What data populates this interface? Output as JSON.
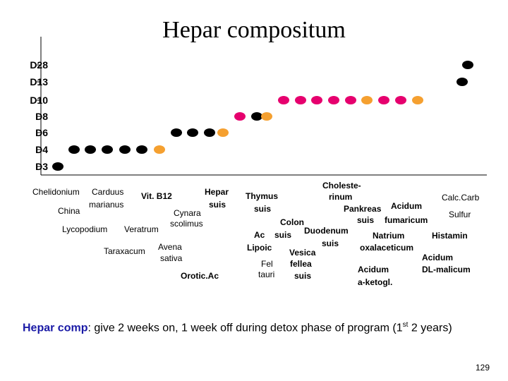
{
  "title": "Hepar compositum",
  "colors": {
    "black": "#000000",
    "pink": "#e6006e",
    "orange": "#f5a030",
    "blue": "#1a1aa6"
  },
  "y_levels": [
    "D28",
    "D13",
    "D10",
    "D8",
    "D6",
    "D4",
    "D3"
  ],
  "chart_data": {
    "type": "scatter",
    "title": "Hepar compositum",
    "xlabel": "",
    "ylabel": "",
    "y_categories": [
      "D28",
      "D13",
      "D10",
      "D8",
      "D6",
      "D4",
      "D3"
    ],
    "points": [
      {
        "x": 1,
        "y": "D3",
        "color": "black"
      },
      {
        "x": 2,
        "y": "D4",
        "color": "black"
      },
      {
        "x": 3,
        "y": "D4",
        "color": "black"
      },
      {
        "x": 4,
        "y": "D4",
        "color": "black"
      },
      {
        "x": 5,
        "y": "D4",
        "color": "black"
      },
      {
        "x": 6,
        "y": "D4",
        "color": "black"
      },
      {
        "x": 7,
        "y": "D4",
        "color": "orange"
      },
      {
        "x": 8,
        "y": "D6",
        "color": "black"
      },
      {
        "x": 9,
        "y": "D6",
        "color": "black"
      },
      {
        "x": 10,
        "y": "D6",
        "color": "black"
      },
      {
        "x": 11,
        "y": "D6",
        "color": "orange"
      },
      {
        "x": 12,
        "y": "D8",
        "color": "pink"
      },
      {
        "x": 13,
        "y": "D8",
        "color": "black"
      },
      {
        "x": 14,
        "y": "D8",
        "color": "orange"
      },
      {
        "x": 15,
        "y": "D10",
        "color": "pink"
      },
      {
        "x": 16,
        "y": "D10",
        "color": "pink"
      },
      {
        "x": 17,
        "y": "D10",
        "color": "pink"
      },
      {
        "x": 18,
        "y": "D10",
        "color": "pink"
      },
      {
        "x": 19,
        "y": "D10",
        "color": "pink"
      },
      {
        "x": 20,
        "y": "D10",
        "color": "orange"
      },
      {
        "x": 21,
        "y": "D10",
        "color": "pink"
      },
      {
        "x": 22,
        "y": "D10",
        "color": "pink"
      },
      {
        "x": 23,
        "y": "D10",
        "color": "orange"
      },
      {
        "x": 24,
        "y": "D13",
        "color": "black"
      },
      {
        "x": 25,
        "y": "D28",
        "color": "black"
      }
    ],
    "ingredient_labels": [
      {
        "text": "Chelidonium",
        "bold": false,
        "blue": false
      },
      {
        "text": "Carduus",
        "bold": false,
        "blue": false
      },
      {
        "text": "marianus",
        "bold": false,
        "blue": false
      },
      {
        "text": "Vit. B12",
        "bold": true,
        "blue": false
      },
      {
        "text": "China",
        "bold": false,
        "blue": false
      },
      {
        "text": "Lycopodium",
        "bold": false,
        "blue": false
      },
      {
        "text": "Veratrum",
        "bold": false,
        "blue": false
      },
      {
        "text": "Hepar",
        "bold": true,
        "blue": false
      },
      {
        "text": "suis",
        "bold": true,
        "blue": false
      },
      {
        "text": "Cynara",
        "bold": false,
        "blue": false
      },
      {
        "text": "scolimus",
        "bold": false,
        "blue": false
      },
      {
        "text": "Taraxacum",
        "bold": false,
        "blue": false
      },
      {
        "text": "Avena",
        "bold": false,
        "blue": false
      },
      {
        "text": "sativa",
        "bold": false,
        "blue": false
      },
      {
        "text": "Orotic.Ac",
        "bold": true,
        "blue": false
      },
      {
        "text": "Thymus",
        "bold": true,
        "blue": false
      },
      {
        "text": "suis",
        "bold": true,
        "blue": false
      },
      {
        "text": "Ac",
        "bold": true,
        "blue": false
      },
      {
        "text": "suis",
        "bold": true,
        "blue": false
      },
      {
        "text": "Lipoic",
        "bold": true,
        "blue": false
      },
      {
        "text": "Fel",
        "bold": false,
        "blue": false
      },
      {
        "text": "tauri",
        "bold": false,
        "blue": false
      },
      {
        "text": "Choleste-",
        "bold": true,
        "blue": false
      },
      {
        "text": "rinum",
        "bold": true,
        "blue": false
      },
      {
        "text": "Colon",
        "bold": true,
        "blue": false
      },
      {
        "text": "Duodenum",
        "bold": true,
        "blue": false
      },
      {
        "text": "suis",
        "bold": true,
        "blue": false
      },
      {
        "text": "Vesica",
        "bold": true,
        "blue": false
      },
      {
        "text": "fellea",
        "bold": true,
        "blue": false
      },
      {
        "text": "suis",
        "bold": true,
        "blue": false
      },
      {
        "text": "Pankreas",
        "bold": true,
        "blue": false
      },
      {
        "text": "suis",
        "bold": true,
        "blue": false
      },
      {
        "text": "Acidum",
        "bold": true,
        "blue": false
      },
      {
        "text": "fumaricum",
        "bold": true,
        "blue": false
      },
      {
        "text": "Natrium",
        "bold": true,
        "blue": false
      },
      {
        "text": "oxalaceticum",
        "bold": true,
        "blue": false
      },
      {
        "text": "Acidum",
        "bold": true,
        "blue": false
      },
      {
        "text": "Acidum",
        "bold": true,
        "blue": false
      },
      {
        "text": "DL-malicum",
        "bold": true,
        "blue": false
      },
      {
        "text": "a-ketogl.",
        "bold": true,
        "blue": false
      },
      {
        "text": "Calc.Carb",
        "bold": false,
        "blue": false
      },
      {
        "text": "Sulfur",
        "bold": false,
        "blue": false
      },
      {
        "text": "Histamin",
        "bold": true,
        "blue": false
      }
    ]
  },
  "note": {
    "highlight": "Hepar comp",
    "text": ": give 2 weeks on, 1 week off during detox phase of program (1",
    "superscript": "st",
    "text_end": " 2 years)"
  },
  "page_number": "129"
}
